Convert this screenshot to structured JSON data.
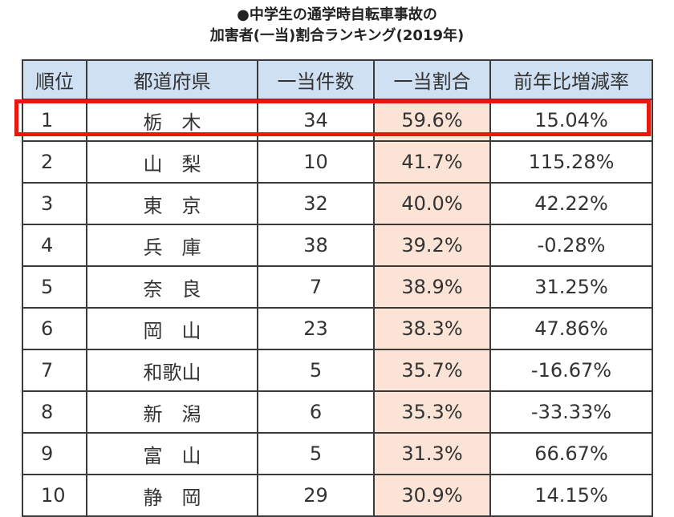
{
  "title_line1": "●中学生の通学時自転車事故の",
  "title_line2": "加害者(一当)割合ランキング(2019年)",
  "highlight_color": "#e8180f",
  "header_color": "#cfe0f3",
  "ratio_column_color": "#fbe3d6",
  "chart_data": {
    "type": "table",
    "columns": [
      "順位",
      "都道府県",
      "一当件数",
      "一当割合",
      "前年比増減率"
    ],
    "rows": [
      {
        "rank": "1",
        "prefecture": "栃　木",
        "count": "34",
        "ratio": "59.6%",
        "change": "15.04%"
      },
      {
        "rank": "2",
        "prefecture": "山　梨",
        "count": "10",
        "ratio": "41.7%",
        "change": "115.28%"
      },
      {
        "rank": "3",
        "prefecture": "東　京",
        "count": "32",
        "ratio": "40.0%",
        "change": "42.22%"
      },
      {
        "rank": "4",
        "prefecture": "兵　庫",
        "count": "38",
        "ratio": "39.2%",
        "change": "-0.28%"
      },
      {
        "rank": "5",
        "prefecture": "奈　良",
        "count": "7",
        "ratio": "38.9%",
        "change": "31.25%"
      },
      {
        "rank": "6",
        "prefecture": "岡　山",
        "count": "23",
        "ratio": "38.3%",
        "change": "47.86%"
      },
      {
        "rank": "7",
        "prefecture": "和歌山",
        "count": "5",
        "ratio": "35.7%",
        "change": "-16.67%"
      },
      {
        "rank": "8",
        "prefecture": "新　潟",
        "count": "6",
        "ratio": "35.3%",
        "change": "-33.33%"
      },
      {
        "rank": "9",
        "prefecture": "富　山",
        "count": "5",
        "ratio": "31.3%",
        "change": "66.67%"
      },
      {
        "rank": "10",
        "prefecture": "静　岡",
        "count": "29",
        "ratio": "30.9%",
        "change": "14.15%"
      }
    ],
    "highlighted_rank": "1"
  }
}
